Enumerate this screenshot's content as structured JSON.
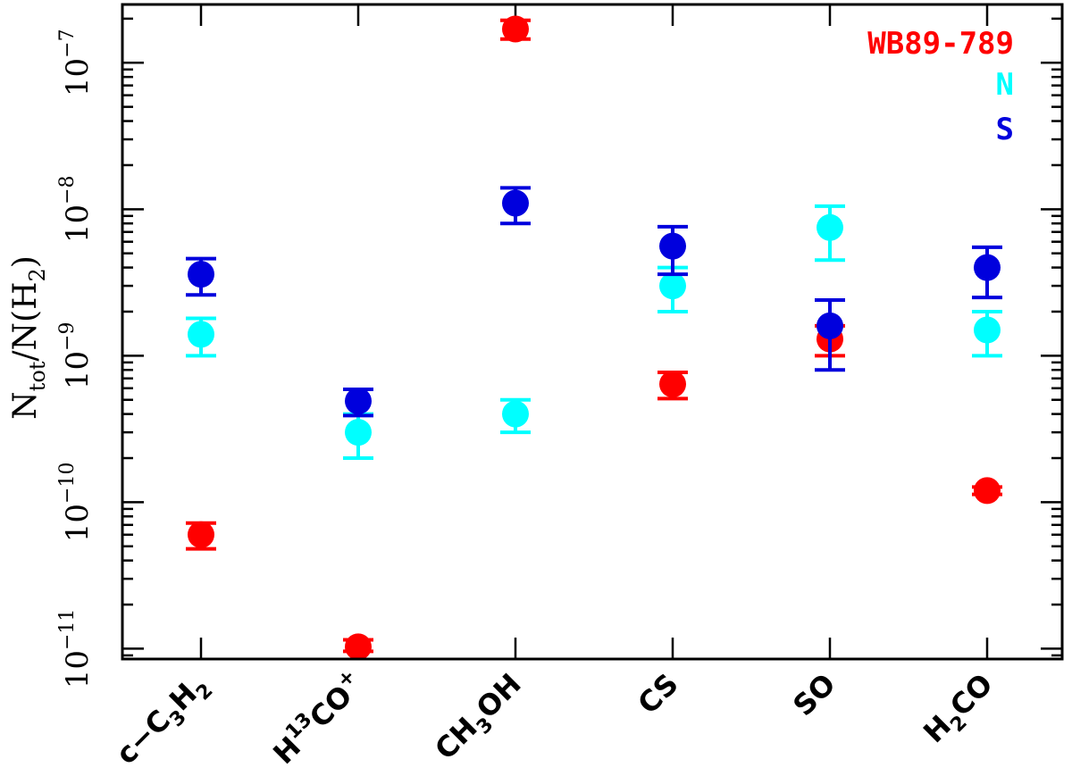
{
  "chart_data": {
    "type": "scatter",
    "title": "",
    "ylabel_parts": [
      "N",
      "tot",
      "/N(H",
      "2",
      ")"
    ],
    "yscale": "log",
    "ylim": [
      8.5e-12,
      2.5e-07
    ],
    "ytick_exponents": [
      -11,
      -10,
      -9,
      -8,
      -7
    ],
    "categories": [
      {
        "parts": [
          [
            "c−C",
            "n"
          ],
          [
            "3",
            "sub"
          ],
          [
            "H",
            "n"
          ],
          [
            "2",
            "sub"
          ]
        ]
      },
      {
        "parts": [
          [
            "H",
            "n"
          ],
          [
            "13",
            "sup"
          ],
          [
            "CO",
            "n"
          ],
          [
            "+",
            "sup"
          ]
        ]
      },
      {
        "parts": [
          [
            "CH",
            "n"
          ],
          [
            "3",
            "sub"
          ],
          [
            "OH",
            "n"
          ]
        ]
      },
      {
        "parts": [
          [
            "CS",
            "n"
          ]
        ]
      },
      {
        "parts": [
          [
            "SO",
            "n"
          ]
        ]
      },
      {
        "parts": [
          [
            "H",
            "n"
          ],
          [
            "2",
            "sub"
          ],
          [
            "CO",
            "n"
          ]
        ]
      }
    ],
    "series": [
      {
        "name": "WB89-789",
        "color": "#ff0000",
        "values": [
          6e-11,
          1.03e-11,
          1.7e-07,
          6.4e-10,
          1.3e-09,
          1.2e-10
        ],
        "err_low": [
          4.8e-11,
          9.6e-12,
          1.45e-07,
          5.1e-10,
          1e-09,
          1.13e-10
        ],
        "err_high": [
          7.2e-11,
          1.15e-11,
          1.95e-07,
          7.7e-10,
          1.6e-09,
          1.27e-10
        ]
      },
      {
        "name": "N",
        "color": "#00ffff",
        "values": [
          1.4e-09,
          3e-10,
          4e-10,
          3e-09,
          7.5e-09,
          1.5e-09
        ],
        "err_low": [
          1e-09,
          2e-10,
          3e-10,
          2e-09,
          4.5e-09,
          1e-09
        ],
        "err_high": [
          1.8e-09,
          4e-10,
          5e-10,
          4e-09,
          1.05e-08,
          2e-09
        ]
      },
      {
        "name": "S",
        "color": "#0000dd",
        "values": [
          3.6e-09,
          4.9e-10,
          1.1e-08,
          5.6e-09,
          1.6e-09,
          4e-09
        ],
        "err_low": [
          2.6e-09,
          3.9e-10,
          8e-09,
          3.6e-09,
          8e-10,
          2.5e-09
        ],
        "err_high": [
          4.6e-09,
          5.9e-10,
          1.4e-08,
          7.6e-09,
          2.4e-09,
          5.5e-09
        ]
      }
    ],
    "legend_position": "top-right"
  }
}
